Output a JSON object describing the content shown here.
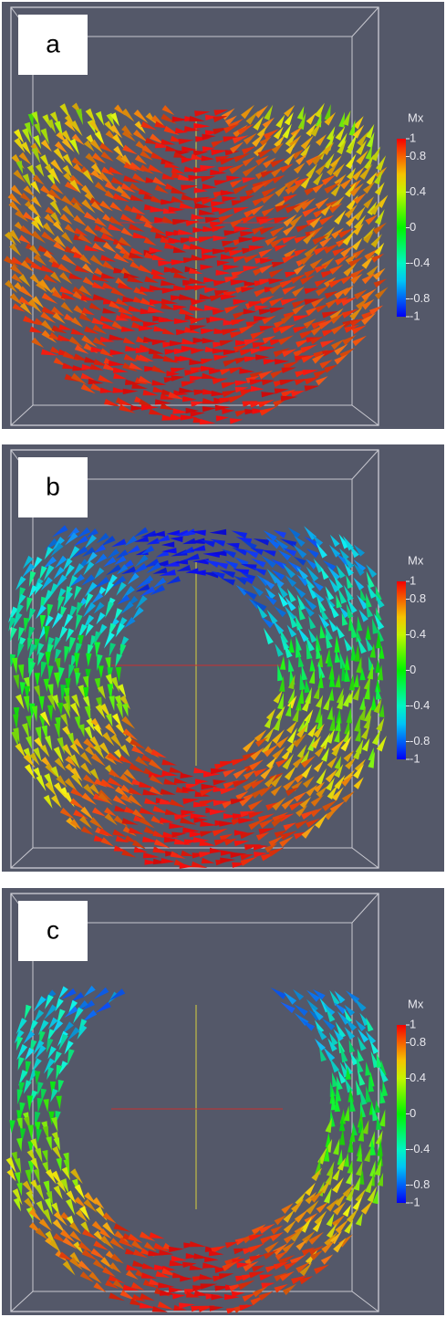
{
  "panels": [
    {
      "label": "a",
      "colorbar": {
        "title": "Mx",
        "lim": [
          -1,
          1
        ],
        "ticks": [
          1,
          0.8,
          0.4,
          0,
          -0.4,
          -0.8,
          -1
        ]
      }
    },
    {
      "label": "b",
      "colorbar": {
        "title": "Mx",
        "lim": [
          -1,
          1
        ],
        "ticks": [
          1,
          0.8,
          0.4,
          0,
          -0.4,
          -0.8,
          -1
        ]
      }
    },
    {
      "label": "c",
      "colorbar": {
        "title": "Mx",
        "lim": [
          -1,
          1
        ],
        "ticks": [
          1,
          0.8,
          0.4,
          0,
          -0.4,
          -0.8,
          -1
        ]
      }
    }
  ]
}
